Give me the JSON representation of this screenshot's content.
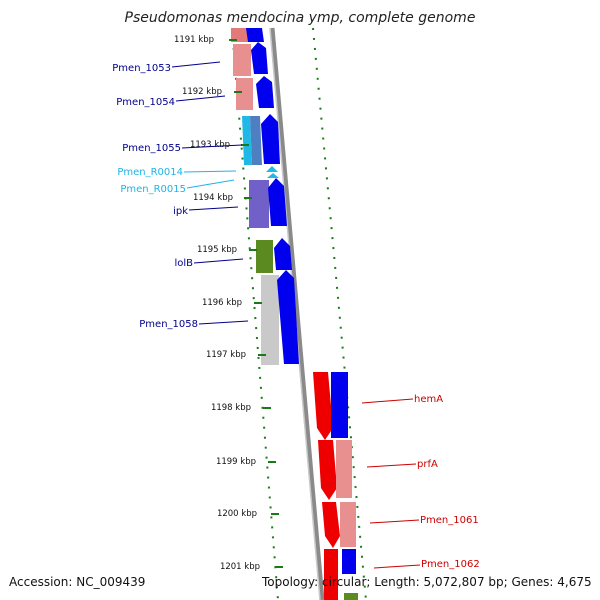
{
  "title": "Pseudomonas mendocina ymp, complete genome",
  "accession": "Accession: NC_009439",
  "topology": "Topology: circular; Length: 5,072,807 bp; Genes: 4,675",
  "ticks": [
    {
      "label": "1191 kbp"
    },
    {
      "label": "1192 kbp"
    },
    {
      "label": "1193 kbp"
    },
    {
      "label": "1194 kbp"
    },
    {
      "label": "1195 kbp"
    },
    {
      "label": "1196 kbp"
    },
    {
      "label": "1197 kbp"
    },
    {
      "label": "1198 kbp"
    },
    {
      "label": "1199 kbp"
    },
    {
      "label": "1200 kbp"
    },
    {
      "label": "1201 kbp"
    }
  ],
  "genes": [
    {
      "label": "Pmen_1053",
      "color": "#00008b"
    },
    {
      "label": "Pmen_1054",
      "color": "#00008b"
    },
    {
      "label": "Pmen_1055",
      "color": "#00008b"
    },
    {
      "label": "Pmen_R0014",
      "color": "#1eb4e6"
    },
    {
      "label": "Pmen_R0015",
      "color": "#1eb4e6"
    },
    {
      "label": "ipk",
      "color": "#00008b"
    },
    {
      "label": "lolB",
      "color": "#00008b"
    },
    {
      "label": "Pmen_1058",
      "color": "#00008b"
    },
    {
      "label": "hemA",
      "color": "#cc0000"
    },
    {
      "label": "prfA",
      "color": "#cc0000"
    },
    {
      "label": "Pmen_1061",
      "color": "#cc0000"
    },
    {
      "label": "Pmen_1062",
      "color": "#cc0000"
    }
  ],
  "colors": {
    "forward_strand": "#0000ee",
    "reverse_strand": "#ee0000",
    "tick": "#1a7a1a",
    "backbone": "#888888"
  }
}
